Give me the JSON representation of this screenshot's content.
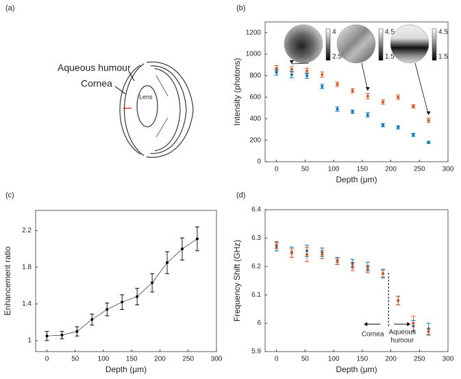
{
  "diagram": {
    "panel": "(a)",
    "labels": [
      "Aqueous humour",
      "Cornea",
      "Lens"
    ]
  },
  "chart_data": [
    {
      "type": "errorbar",
      "panel": "(b)",
      "xlabel": "Depth (μm)",
      "ylabel": "Intensity (photons)",
      "x": [
        0,
        26.6,
        53.2,
        79.8,
        106.4,
        133,
        159.6,
        186.2,
        212.8,
        239.4,
        266
      ],
      "xlim": [
        -20,
        300
      ],
      "xticks": [
        0,
        50,
        100,
        150,
        200,
        250,
        300
      ],
      "ylim": [
        0,
        1300
      ],
      "yticks": [
        0,
        200,
        400,
        600,
        800,
        1000,
        1200
      ],
      "series": [
        {
          "color": "#d95319",
          "values": [
            870,
            860,
            845,
            810,
            720,
            660,
            610,
            555,
            600,
            515,
            385
          ],
          "errors": [
            25,
            25,
            25,
            25,
            20,
            20,
            25,
            20,
            20,
            15,
            20
          ]
        },
        {
          "color": "#0072bd",
          "values": [
            830,
            810,
            800,
            700,
            490,
            465,
            435,
            340,
            320,
            250,
            180
          ],
          "errors": [
            25,
            30,
            25,
            20,
            20,
            15,
            20,
            15,
            15,
            15,
            10
          ]
        }
      ],
      "insets": [
        {
          "clim": [
            2.5,
            4
          ]
        },
        {
          "clim": [
            1.5,
            4.5
          ]
        },
        {
          "clim": [
            1.5,
            4.5
          ]
        }
      ]
    },
    {
      "type": "line",
      "panel": "(c)",
      "xlabel": "Depth (μm)",
      "ylabel": "Enhancement ratio",
      "x": [
        0,
        26.6,
        53.2,
        79.8,
        106.4,
        133,
        159.6,
        186.2,
        212.8,
        239.4,
        266
      ],
      "xlim": [
        -20,
        300
      ],
      "xticks": [
        0,
        50,
        100,
        150,
        200,
        250,
        300
      ],
      "ylim": [
        0.88,
        2.42
      ],
      "yticks": [
        1,
        1.4,
        1.8,
        2.2
      ],
      "color": "#000000",
      "values": [
        1.05,
        1.06,
        1.1,
        1.23,
        1.34,
        1.42,
        1.48,
        1.63,
        1.85,
        2.0,
        2.11
      ],
      "errors": [
        0.05,
        0.04,
        0.05,
        0.06,
        0.07,
        0.08,
        0.09,
        0.1,
        0.12,
        0.12,
        0.13
      ]
    },
    {
      "type": "errorbar",
      "panel": "(d)",
      "xlabel": "Depth (μm)",
      "ylabel": "Frequency Shift (GHz)",
      "x": [
        0,
        26.6,
        53.2,
        79.8,
        106.4,
        133,
        159.6,
        186.2,
        212.8,
        239.4,
        266
      ],
      "xlim": [
        -20,
        300
      ],
      "xticks": [
        0,
        50,
        100,
        150,
        200,
        250,
        300
      ],
      "ylim": [
        5.9,
        6.4
      ],
      "yticks": [
        5.9,
        6,
        6.1,
        6.2,
        6.3,
        6.4
      ],
      "series": [
        {
          "color": "#0072bd",
          "values": [
            6.27,
            6.25,
            6.255,
            6.25,
            6.22,
            6.21,
            6.2,
            6.175,
            6.08,
            5.99,
            5.98
          ],
          "errors": [
            0.015,
            0.018,
            0.02,
            0.015,
            0.012,
            0.015,
            0.015,
            0.015,
            0.015,
            0.02,
            0.02
          ]
        },
        {
          "color": "#d95319",
          "values": [
            6.276,
            6.247,
            6.242,
            6.242,
            6.217,
            6.2,
            6.19,
            6.175,
            6.08,
            6.0,
            5.97
          ],
          "errors": [
            0.012,
            0.015,
            0.025,
            0.015,
            0.01,
            0.015,
            0.012,
            0.012,
            0.015,
            0.025,
            0.012
          ]
        }
      ],
      "divider_x": 196,
      "annotations": [
        "Cornea",
        "Aqueous",
        "humour"
      ]
    }
  ]
}
